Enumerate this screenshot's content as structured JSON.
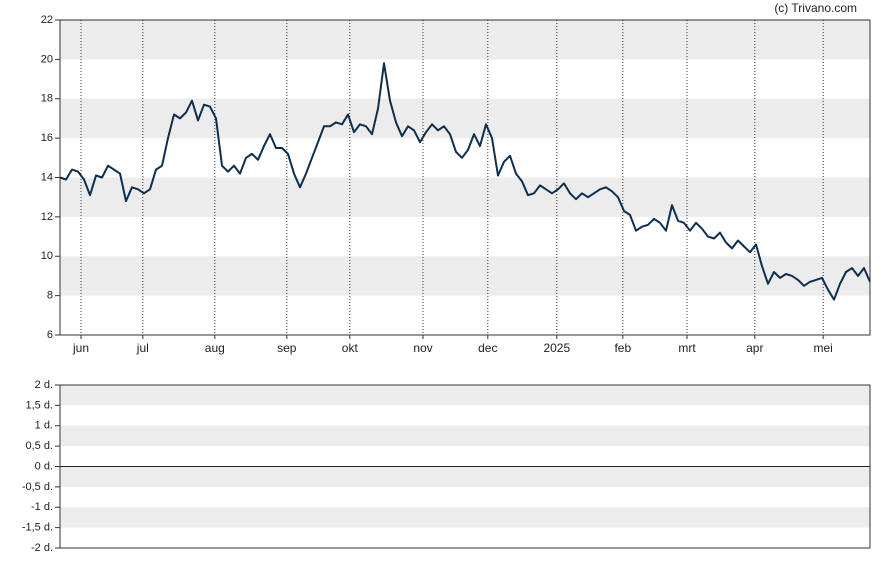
{
  "credit": "(c) Trivano.com",
  "chart_data": [
    {
      "type": "line",
      "values": [
        14.0,
        13.9,
        14.4,
        14.3,
        13.9,
        13.1,
        14.1,
        14.0,
        14.6,
        14.4,
        14.2,
        12.8,
        13.5,
        13.4,
        13.2,
        13.4,
        14.4,
        14.6,
        16.0,
        17.2,
        17.0,
        17.3,
        17.9,
        16.9,
        17.7,
        17.6,
        17.0,
        14.6,
        14.3,
        14.6,
        14.2,
        15.0,
        15.2,
        14.9,
        15.6,
        16.2,
        15.5,
        15.5,
        15.2,
        14.2,
        13.5,
        14.2,
        15.0,
        15.8,
        16.6,
        16.6,
        16.8,
        16.7,
        17.2,
        16.3,
        16.7,
        16.6,
        16.2,
        17.5,
        19.8,
        17.9,
        16.8,
        16.1,
        16.6,
        16.4,
        15.8,
        16.3,
        16.7,
        16.4,
        16.6,
        16.2,
        15.3,
        15.0,
        15.4,
        16.2,
        15.6,
        16.7,
        16.0,
        14.1,
        14.8,
        15.1,
        14.2,
        13.8,
        13.1,
        13.2,
        13.6,
        13.4,
        13.2,
        13.4,
        13.7,
        13.2,
        12.9,
        13.2,
        13.0,
        13.2,
        13.4,
        13.5,
        13.3,
        13.0,
        12.3,
        12.1,
        11.3,
        11.5,
        11.6,
        11.9,
        11.7,
        11.3,
        12.6,
        11.8,
        11.7,
        11.3,
        11.7,
        11.4,
        11.0,
        10.9,
        11.2,
        10.7,
        10.4,
        10.8,
        10.5,
        10.2,
        10.6,
        9.5,
        8.6,
        9.2,
        8.9,
        9.1,
        9.0,
        8.8,
        8.5,
        8.7,
        8.8,
        8.9,
        8.3,
        7.8,
        8.6,
        9.2,
        9.4,
        9.0,
        9.4,
        8.7
      ],
      "color": "#0d2f4f",
      "xlim": [
        0,
        135
      ],
      "xticks": [
        {
          "value": 3.5,
          "label": "jun"
        },
        {
          "value": 13.8,
          "label": "jul"
        },
        {
          "value": 25.8,
          "label": "aug"
        },
        {
          "value": 37.8,
          "label": "sep"
        },
        {
          "value": 48.3,
          "label": "okt"
        },
        {
          "value": 60.5,
          "label": "nov"
        },
        {
          "value": 71.3,
          "label": "dec"
        },
        {
          "value": 82.8,
          "label": "2025"
        },
        {
          "value": 93.8,
          "label": "feb"
        },
        {
          "value": 104.5,
          "label": "mrt"
        },
        {
          "value": 115.8,
          "label": "apr"
        },
        {
          "value": 127.2,
          "label": "mei"
        }
      ],
      "ylim": [
        6,
        22
      ],
      "yticks": [
        6,
        8,
        10,
        12,
        14,
        16,
        18,
        20,
        22
      ],
      "grid": true
    },
    {
      "type": "bar",
      "values": [],
      "ylim": [
        -2,
        2
      ],
      "yticks": [
        {
          "value": 2,
          "label": "2 d."
        },
        {
          "value": 1.5,
          "label": "1,5 d."
        },
        {
          "value": 1,
          "label": "1 d."
        },
        {
          "value": 0.5,
          "label": "0,5 d."
        },
        {
          "value": 0,
          "label": "0 d."
        },
        {
          "value": -0.5,
          "label": "-0,5 d."
        },
        {
          "value": -1,
          "label": "-1 d."
        },
        {
          "value": -1.5,
          "label": "-1,5 d."
        },
        {
          "value": -2,
          "label": "-2 d."
        }
      ],
      "grid": true
    }
  ]
}
